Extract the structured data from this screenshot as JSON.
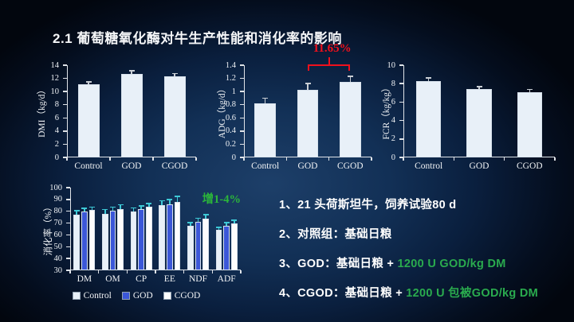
{
  "slide": {
    "title": "2.1 葡萄糖氧化酶对牛生产性能和消化率的影响"
  },
  "colors": {
    "background_glow": "#1d3f69",
    "background_edge": "#02060e",
    "accent_red": "#f0101c",
    "accent_green": "#2aab4e",
    "annotation_green": "#2bb63a",
    "bar_light": "#e8f0f8",
    "bar_blue": "#3b57d8",
    "bar_white": "#fdfdfd",
    "error_gray": "#c9ced4",
    "error_cyan": "#3ec9d6"
  },
  "chart_data": [
    {
      "type": "bar",
      "ylabel": "DMI（kg/d）",
      "categories": [
        "Control",
        "GOD",
        "CGOD"
      ],
      "values": [
        11.1,
        12.7,
        12.3
      ],
      "errors": [
        0.45,
        0.55,
        0.5
      ],
      "ylim": [
        0,
        14
      ],
      "ystep": 2,
      "bar_color": "#e8f0f8",
      "err_color": "#c9ced4",
      "margins": {
        "l": 56,
        "r": 14,
        "t": 8,
        "b": 26
      },
      "ylabel_cx": 24
    },
    {
      "type": "bar",
      "ylabel": "ADG（kg/d）",
      "categories": [
        "Control",
        "GOD",
        "CGOD"
      ],
      "values": [
        0.82,
        1.03,
        1.15
      ],
      "errors": [
        0.09,
        0.1,
        0.09
      ],
      "ylim": [
        0,
        1.4
      ],
      "ystep": 0.2,
      "bar_color": "#e8f0f8",
      "err_color": "#c9ced4",
      "margins": {
        "l": 56,
        "r": 10,
        "t": 8,
        "b": 26
      },
      "ylabel_cx": 28,
      "annotation": {
        "text": "11.65%",
        "color": "#f0101c",
        "bracket": [
          1,
          2
        ]
      }
    },
    {
      "type": "bar",
      "ylabel": "FCR（kg/kg）",
      "categories": [
        "Control",
        "GOD",
        "CGOD"
      ],
      "values": [
        8.3,
        7.4,
        7.1
      ],
      "errors": [
        0.4,
        0.35,
        0.35
      ],
      "ylim": [
        0,
        10
      ],
      "ystep": 2,
      "bar_color": "#e8f0f8",
      "err_color": "#c9ced4",
      "margins": {
        "l": 30,
        "r": 12,
        "t": 8,
        "b": 26
      },
      "ylabel_cx": 8
    },
    {
      "type": "grouped-bar",
      "ylabel": "消化率（%）",
      "categories": [
        "DM",
        "OM",
        "CP",
        "EE",
        "NDF",
        "ADF"
      ],
      "series": [
        {
          "name": "Control",
          "color": "#e8f0f8",
          "values": [
            77,
            78,
            80,
            85.5,
            68,
            64
          ],
          "errors": [
            4,
            4,
            3.5,
            4,
            3,
            3
          ]
        },
        {
          "name": "GOD",
          "color": "#3b57d8",
          "values": [
            80,
            80.5,
            82,
            86,
            71,
            68
          ],
          "errors": [
            3,
            3.5,
            3,
            4.5,
            3.5,
            3
          ]
        },
        {
          "name": "CGOD",
          "color": "#fdfdfd",
          "values": [
            81,
            82,
            84,
            88,
            74,
            70
          ],
          "errors": [
            3,
            4,
            3,
            5,
            3.5,
            3
          ]
        }
      ],
      "ylim": [
        30,
        100
      ],
      "ystep": 10,
      "err_color": "#3ec9d6",
      "margins": {
        "l": 60,
        "r": 12,
        "t": 8,
        "b": 48
      },
      "ylabel_cx": 32,
      "legend": true,
      "annotation": {
        "text": "增1-4%",
        "color": "#2bb63a"
      }
    }
  ],
  "notes": {
    "lines": [
      {
        "parts": [
          {
            "text": "1、21 头荷斯坦牛，饲养试验80 d",
            "color": "#ffffff"
          }
        ]
      },
      {
        "parts": [
          {
            "text": "2、对照组：基础日粮",
            "color": "#ffffff"
          }
        ]
      },
      {
        "parts": [
          {
            "text": "3、GOD：基础日粮 + ",
            "color": "#ffffff"
          },
          {
            "text": "1200 U GOD/kg DM",
            "color": "#2aab4e"
          }
        ]
      },
      {
        "parts": [
          {
            "text": "4、CGOD：基础日粮 + ",
            "color": "#ffffff"
          },
          {
            "text": "1200 U 包被GOD/kg DM",
            "color": "#2aab4e"
          }
        ]
      }
    ]
  }
}
